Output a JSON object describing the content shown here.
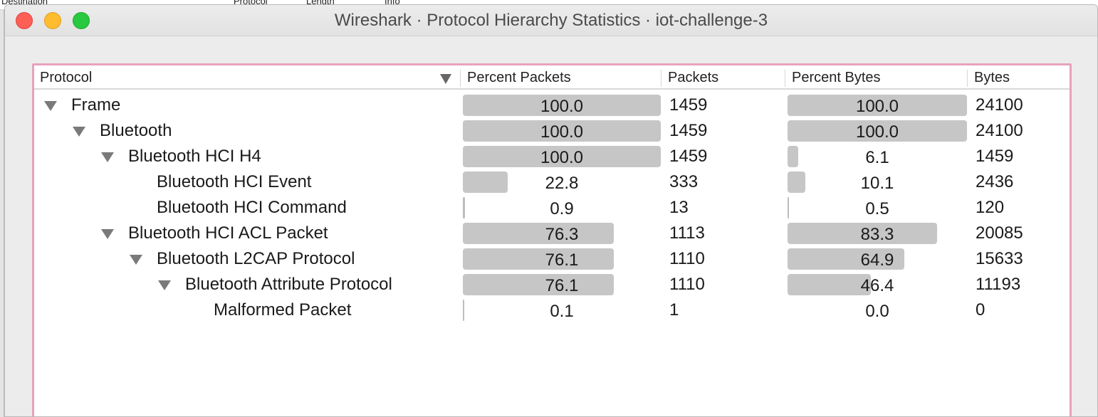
{
  "window": {
    "title": "Wireshark · Protocol Hierarchy Statistics · iot-challenge-3"
  },
  "background": {
    "columns": [
      "Destination",
      "Protocol",
      "Length",
      "Info"
    ]
  },
  "columns": {
    "protocol": "Protocol",
    "percent_packets": "Percent Packets",
    "packets": "Packets",
    "percent_bytes": "Percent Bytes",
    "bytes": "Bytes"
  },
  "icons": {
    "sort": "sort-descending-icon",
    "expander": "expander-triangle-icon"
  },
  "colors": {
    "bar": "#c6c6c6",
    "panel_border": "#e7a2bd",
    "close": "#fd5f57",
    "minimize": "#febc2e",
    "maximize": "#28c840"
  },
  "rows": [
    {
      "protocol": "Frame",
      "level": 0,
      "expanded": true,
      "percent_packets": "100.0",
      "packets": "1459",
      "percent_bytes": "100.0",
      "bytes": "24100"
    },
    {
      "protocol": "Bluetooth",
      "level": 1,
      "expanded": true,
      "percent_packets": "100.0",
      "packets": "1459",
      "percent_bytes": "100.0",
      "bytes": "24100"
    },
    {
      "protocol": "Bluetooth HCI H4",
      "level": 2,
      "expanded": true,
      "percent_packets": "100.0",
      "packets": "1459",
      "percent_bytes": "6.1",
      "bytes": "1459"
    },
    {
      "protocol": "Bluetooth HCI Event",
      "level": 3,
      "expanded": false,
      "percent_packets": "22.8",
      "packets": "333",
      "percent_bytes": "10.1",
      "bytes": "2436"
    },
    {
      "protocol": "Bluetooth HCI Command",
      "level": 3,
      "expanded": false,
      "percent_packets": "0.9",
      "packets": "13",
      "percent_bytes": "0.5",
      "bytes": "120"
    },
    {
      "protocol": "Bluetooth HCI ACL Packet",
      "level": 2,
      "expanded": true,
      "percent_packets": "76.3",
      "packets": "1113",
      "percent_bytes": "83.3",
      "bytes": "20085"
    },
    {
      "protocol": "Bluetooth L2CAP Protocol",
      "level": 3,
      "expanded": true,
      "percent_packets": "76.1",
      "packets": "1110",
      "percent_bytes": "64.9",
      "bytes": "15633"
    },
    {
      "protocol": "Bluetooth Attribute Protocol",
      "level": 4,
      "expanded": true,
      "percent_packets": "76.1",
      "packets": "1110",
      "percent_bytes": "46.4",
      "bytes": "11193"
    },
    {
      "protocol": "Malformed Packet",
      "level": 5,
      "expanded": false,
      "percent_packets": "0.1",
      "packets": "1",
      "percent_bytes": "0.0",
      "bytes": "0"
    }
  ]
}
